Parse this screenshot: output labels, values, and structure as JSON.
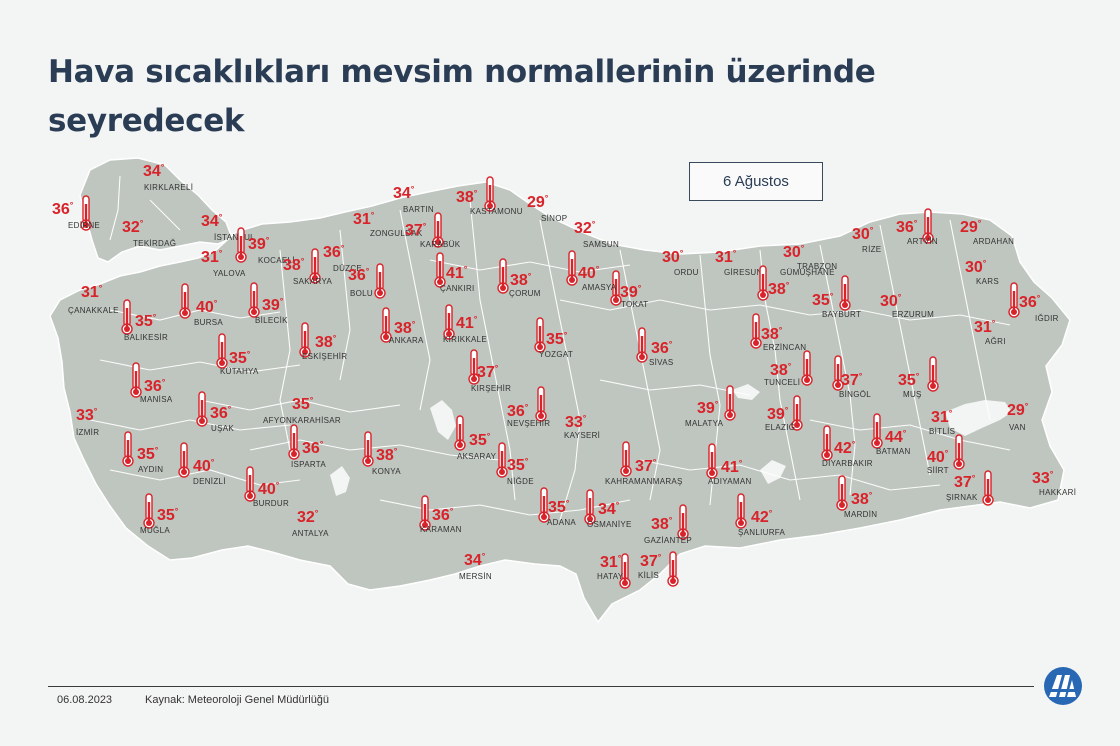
{
  "title": "Hava sıcaklıkları mevsim normallerinin üzerinde seyredecek",
  "date_label": "6 Ağustos",
  "footer": {
    "date": "06.08.2023",
    "source": "Kaynak: Meteoroloji Genel Müdürlüğü"
  },
  "colors": {
    "temperature": "#d8232a",
    "map_fill": "#bfc5bf",
    "border": "#ffffff",
    "title": "#2a3d55"
  },
  "icons": {
    "thermometer": "thermometer-icon",
    "logo": "aa-logo"
  },
  "degree_symbol": "°",
  "cities": [
    {
      "name": "KIRKLARELİ",
      "temp": 34
    },
    {
      "name": "EDİRNE",
      "temp": 36
    },
    {
      "name": "TEKİRDAĞ",
      "temp": 32
    },
    {
      "name": "İSTANBUL",
      "temp": 34
    },
    {
      "name": "KOCAELİ",
      "temp": 39
    },
    {
      "name": "YALOVA",
      "temp": 31
    },
    {
      "name": "SAKARYA",
      "temp": 38
    },
    {
      "name": "DÜZCE",
      "temp": 36
    },
    {
      "name": "ZONGULDAK",
      "temp": 31
    },
    {
      "name": "BARTIN",
      "temp": 34
    },
    {
      "name": "KARABÜK",
      "temp": 37
    },
    {
      "name": "KASTAMONU",
      "temp": 38
    },
    {
      "name": "SİNOP",
      "temp": 29
    },
    {
      "name": "SAMSUN",
      "temp": 32
    },
    {
      "name": "ORDU",
      "temp": 30
    },
    {
      "name": "GİRESUN",
      "temp": 31
    },
    {
      "name": "TRABZON",
      "temp": 30
    },
    {
      "name": "RİZE",
      "temp": 30
    },
    {
      "name": "ARTVİN",
      "temp": 36
    },
    {
      "name": "ARDAHAN",
      "temp": 29
    },
    {
      "name": "KARS",
      "temp": 30
    },
    {
      "name": "IĞDIR",
      "temp": 36
    },
    {
      "name": "AĞRI",
      "temp": 31
    },
    {
      "name": "ERZURUM",
      "temp": 30
    },
    {
      "name": "BAYBURT",
      "temp": 35
    },
    {
      "name": "GÜMÜŞHANE",
      "temp": 38
    },
    {
      "name": "ERZİNCAN",
      "temp": 38
    },
    {
      "name": "TOKAT",
      "temp": 39
    },
    {
      "name": "AMASYA",
      "temp": 40
    },
    {
      "name": "ÇORUM",
      "temp": 38
    },
    {
      "name": "ÇANKIRI",
      "temp": 41
    },
    {
      "name": "BOLU",
      "temp": 36
    },
    {
      "name": "BİLECİK",
      "temp": 39
    },
    {
      "name": "BURSA",
      "temp": 40
    },
    {
      "name": "ÇANAKKALE",
      "temp": 31
    },
    {
      "name": "BALIKESİR",
      "temp": 35
    },
    {
      "name": "ESKİŞEHİR",
      "temp": 38
    },
    {
      "name": "ANKARA",
      "temp": 38
    },
    {
      "name": "KIRIKKALE",
      "temp": 41
    },
    {
      "name": "YOZGAT",
      "temp": 35
    },
    {
      "name": "SİVAS",
      "temp": 36
    },
    {
      "name": "KÜTAHYA",
      "temp": 35
    },
    {
      "name": "MANİSA",
      "temp": 36
    },
    {
      "name": "İZMİR",
      "temp": 33
    },
    {
      "name": "UŞAK",
      "temp": 36
    },
    {
      "name": "AFYONKARAHİSAR",
      "temp": 35
    },
    {
      "name": "KIRŞEHİR",
      "temp": 37
    },
    {
      "name": "NEVŞEHİR",
      "temp": 36
    },
    {
      "name": "KAYSERİ",
      "temp": 33
    },
    {
      "name": "MALATYA",
      "temp": 39
    },
    {
      "name": "ELAZIĞ",
      "temp": 39
    },
    {
      "name": "TUNCELİ",
      "temp": 38
    },
    {
      "name": "BİNGÖL",
      "temp": 37
    },
    {
      "name": "MUŞ",
      "temp": 35
    },
    {
      "name": "BİTLİS",
      "temp": 31
    },
    {
      "name": "VAN",
      "temp": 29
    },
    {
      "name": "AYDIN",
      "temp": 35
    },
    {
      "name": "DENİZLİ",
      "temp": 40
    },
    {
      "name": "ISPARTA",
      "temp": 36
    },
    {
      "name": "KONYA",
      "temp": 38
    },
    {
      "name": "AKSARAY",
      "temp": 35
    },
    {
      "name": "NİĞDE",
      "temp": 35
    },
    {
      "name": "KAHRAMANMARAŞ",
      "temp": 37
    },
    {
      "name": "ADIYAMAN",
      "temp": 41
    },
    {
      "name": "DİYARBAKIR",
      "temp": 42
    },
    {
      "name": "BATMAN",
      "temp": 44
    },
    {
      "name": "SİİRT",
      "temp": 40
    },
    {
      "name": "ŞIRNAK",
      "temp": 37
    },
    {
      "name": "HAKKARİ",
      "temp": 33
    },
    {
      "name": "MARDİN",
      "temp": 38
    },
    {
      "name": "ŞANLIURFA",
      "temp": 42
    },
    {
      "name": "GAZİANTEP",
      "temp": 38
    },
    {
      "name": "KİLİS",
      "temp": 37
    },
    {
      "name": "HATAY",
      "temp": 31
    },
    {
      "name": "OSMANİYE",
      "temp": 34
    },
    {
      "name": "ADANA",
      "temp": 35
    },
    {
      "name": "MERSİN",
      "temp": 34
    },
    {
      "name": "KARAMAN",
      "temp": 36
    },
    {
      "name": "ANTALYA",
      "temp": 32
    },
    {
      "name": "BURDUR",
      "temp": 40
    },
    {
      "name": "MUĞLA",
      "temp": 35
    }
  ]
}
